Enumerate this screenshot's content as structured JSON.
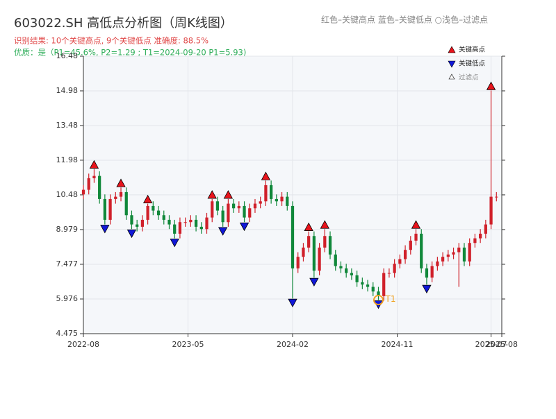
{
  "chart_data": {
    "type": "candlestick",
    "title": "603022.SH 高低点分析图（周K线图）",
    "subtitle": "识别结果: 10个关键高点, 9个关键低点  准确度: 88.5%",
    "quality": "优质：是（P1=45.6%, P2=1.29 ; T1=2024-09-20 P1=5.93)",
    "legend_note": "红色–关键高点    蓝色–关键低点   ○浅色–过滤点",
    "legend": [
      "关键高点",
      "关键低点",
      "过滤点"
    ],
    "up_color": "#d0202a",
    "down_color": "#10883a",
    "high_color": "#e8131b",
    "low_color": "#1018d8",
    "grid": true,
    "xlim": [
      0,
      78
    ],
    "xticks": [
      {
        "value": 0,
        "label": "2022-08"
      },
      {
        "value": 19.5,
        "label": "2023-05"
      },
      {
        "value": 39,
        "label": "2024-02"
      },
      {
        "value": 58.5,
        "label": "2024-11"
      },
      {
        "value": 76,
        "label": "2025-07"
      },
      {
        "value": 78,
        "label": "2025-08"
      }
    ],
    "ylim": [
      4.475,
      16.48
    ],
    "yticks": [
      4.475,
      5.976,
      7.477,
      8.979,
      10.48,
      11.98,
      13.48,
      14.98,
      16.48
    ],
    "open": [
      10.5,
      10.7,
      11.2,
      11.3,
      10.3,
      9.4,
      10.3,
      10.4,
      10.6,
      9.6,
      9.2,
      9.1,
      9.4,
      10.0,
      9.8,
      9.6,
      9.4,
      9.2,
      8.8,
      9.3,
      9.3,
      9.4,
      9.1,
      9.0,
      9.5,
      10.2,
      9.8,
      9.3,
      10.1,
      9.9,
      10.0,
      9.5,
      9.9,
      10.1,
      10.2,
      10.9,
      10.3,
      10.2,
      10.4,
      10.0,
      7.3,
      7.8,
      8.2,
      8.7,
      7.2,
      8.2,
      8.7,
      7.9,
      7.4,
      7.3,
      7.1,
      7.0,
      6.7,
      6.6,
      6.5,
      6.3,
      6.1,
      7.1,
      7.1,
      7.5,
      7.7,
      8.1,
      8.5,
      8.8,
      7.3,
      6.9,
      7.4,
      7.6,
      7.8,
      7.9,
      8.0,
      8.2,
      7.6,
      8.4,
      8.6,
      8.8,
      9.2,
      10.4
    ],
    "high": [
      10.9,
      11.4,
      11.6,
      11.5,
      10.5,
      10.5,
      10.6,
      10.8,
      10.8,
      9.8,
      9.4,
      9.6,
      10.1,
      10.2,
      10.0,
      9.8,
      9.6,
      9.4,
      9.5,
      9.5,
      9.6,
      9.6,
      9.3,
      9.7,
      10.3,
      10.4,
      10.0,
      10.3,
      10.3,
      10.2,
      10.2,
      10.1,
      10.3,
      10.4,
      11.1,
      11.1,
      10.5,
      10.6,
      10.6,
      10.2,
      8.0,
      8.4,
      8.9,
      8.9,
      8.4,
      9.0,
      8.9,
      8.1,
      7.6,
      7.5,
      7.3,
      7.2,
      6.9,
      6.8,
      6.7,
      6.5,
      7.3,
      7.3,
      7.7,
      7.9,
      8.3,
      8.7,
      9.0,
      9.0,
      7.5,
      7.6,
      7.8,
      8.0,
      8.1,
      8.2,
      8.4,
      8.4,
      8.6,
      8.8,
      9.0,
      9.4,
      15.0,
      10.6
    ],
    "low": [
      10.3,
      10.5,
      11.0,
      10.1,
      9.2,
      9.2,
      10.1,
      10.2,
      9.4,
      9.0,
      8.9,
      8.9,
      9.2,
      9.6,
      9.4,
      9.2,
      9.0,
      8.6,
      8.6,
      9.1,
      9.1,
      8.9,
      8.8,
      8.8,
      9.3,
      9.6,
      9.1,
      9.1,
      9.7,
      9.7,
      9.3,
      9.3,
      9.7,
      9.9,
      10.0,
      10.1,
      10.0,
      10.0,
      9.8,
      6.0,
      7.1,
      7.6,
      8.0,
      6.9,
      7.0,
      8.0,
      7.7,
      7.2,
      7.1,
      6.9,
      6.8,
      6.5,
      6.4,
      6.3,
      6.1,
      5.93,
      5.9,
      6.9,
      6.9,
      7.3,
      7.5,
      7.9,
      8.3,
      7.1,
      6.6,
      6.7,
      7.2,
      7.4,
      7.6,
      7.7,
      6.5,
      7.4,
      7.4,
      8.2,
      8.4,
      8.6,
      9.0,
      10.2
    ],
    "close": [
      10.7,
      11.2,
      11.3,
      10.3,
      9.4,
      10.3,
      10.4,
      10.6,
      9.6,
      9.2,
      9.1,
      9.4,
      10.0,
      9.8,
      9.6,
      9.4,
      9.2,
      8.8,
      9.3,
      9.3,
      9.4,
      9.1,
      9.0,
      9.5,
      10.2,
      9.8,
      9.3,
      10.1,
      9.9,
      10.0,
      9.5,
      9.9,
      10.1,
      10.2,
      10.9,
      10.3,
      10.2,
      10.4,
      10.0,
      7.3,
      7.8,
      8.2,
      8.7,
      7.2,
      8.2,
      8.7,
      7.9,
      7.4,
      7.3,
      7.1,
      7.0,
      6.7,
      6.6,
      6.5,
      6.3,
      6.1,
      7.1,
      7.1,
      7.5,
      7.7,
      8.1,
      8.5,
      8.8,
      7.3,
      6.9,
      7.4,
      7.6,
      7.8,
      7.9,
      8.0,
      8.2,
      7.6,
      8.4,
      8.6,
      8.8,
      9.2,
      10.4,
      10.4
    ],
    "key_highs": [
      {
        "x": 2,
        "value": 11.6
      },
      {
        "x": 7,
        "value": 10.8
      },
      {
        "x": 12,
        "value": 10.1
      },
      {
        "x": 24,
        "value": 10.3
      },
      {
        "x": 27,
        "value": 10.3
      },
      {
        "x": 34,
        "value": 11.1
      },
      {
        "x": 42,
        "value": 8.9
      },
      {
        "x": 45,
        "value": 9.0
      },
      {
        "x": 62,
        "value": 9.0
      },
      {
        "x": 76,
        "value": 15.0
      }
    ],
    "key_lows": [
      {
        "x": 4,
        "value": 9.2
      },
      {
        "x": 9,
        "value": 9.0
      },
      {
        "x": 17,
        "value": 8.6
      },
      {
        "x": 26,
        "value": 9.1
      },
      {
        "x": 30,
        "value": 9.3
      },
      {
        "x": 39,
        "value": 6.0
      },
      {
        "x": 43,
        "value": 6.9
      },
      {
        "x": 55,
        "value": 5.93
      },
      {
        "x": 64,
        "value": 6.6
      }
    ],
    "annotation": {
      "text": "T1",
      "x": 55,
      "value": 5.93,
      "color": "#f0a020"
    }
  }
}
